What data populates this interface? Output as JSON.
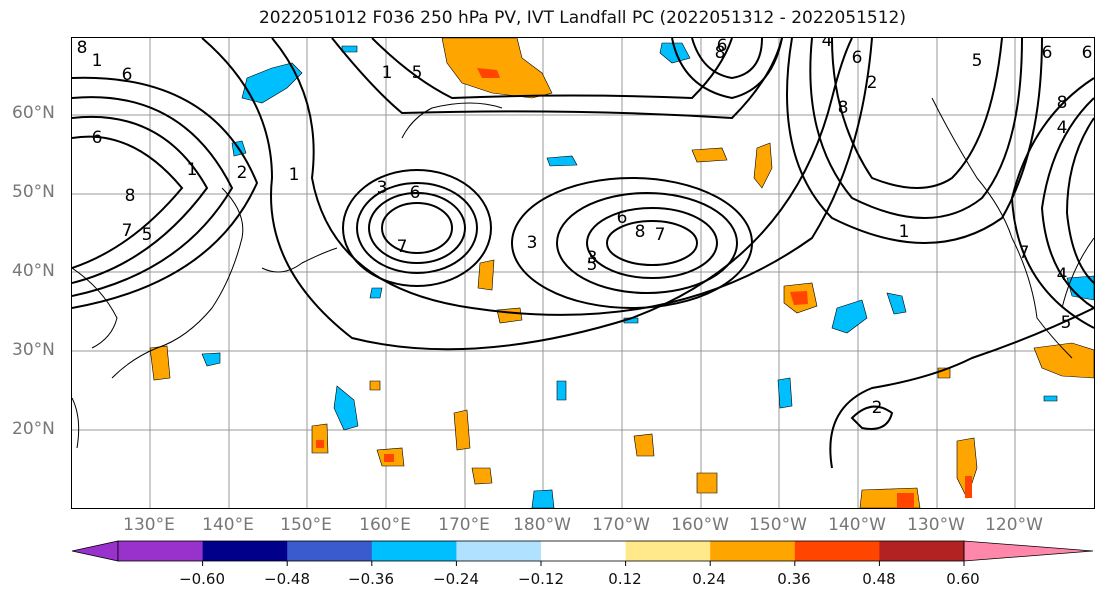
{
  "title": "2022051012 F036 250 hPa PV, IVT Landfall PC (2022051312 - 2022051512)",
  "lat_labels": [
    "60°N",
    "50°N",
    "40°N",
    "30°N",
    "20°N"
  ],
  "lon_labels": [
    "130°E",
    "140°E",
    "150°E",
    "160°E",
    "170°E",
    "180°W",
    "170°W",
    "160°W",
    "150°W",
    "140°W",
    "130°W",
    "120°W"
  ],
  "colorbar": {
    "ticks": [
      "−0.60",
      "−0.48",
      "−0.36",
      "−0.24",
      "−0.12",
      "0.12",
      "0.24",
      "0.36",
      "0.48",
      "0.60"
    ],
    "colors": [
      "#9932cc",
      "#00008b",
      "#3a5bcd",
      "#00bfff",
      "#b0e2ff",
      "#ffffff",
      "#ffe98a",
      "#ffa500",
      "#ff4500",
      "#b22222",
      "#ff88aa"
    ]
  },
  "contour_labels": [
    "1",
    "6",
    "6",
    "8",
    "7",
    "1",
    "5",
    "8",
    "1",
    "5",
    "6",
    "2",
    "1",
    "3",
    "7",
    "6",
    "8",
    "3",
    "5",
    "6",
    "8",
    "7",
    "4",
    "8",
    "6",
    "2",
    "1",
    "8",
    "5",
    "6",
    "7",
    "4",
    "6",
    "5",
    "4",
    "3",
    "2"
  ]
}
